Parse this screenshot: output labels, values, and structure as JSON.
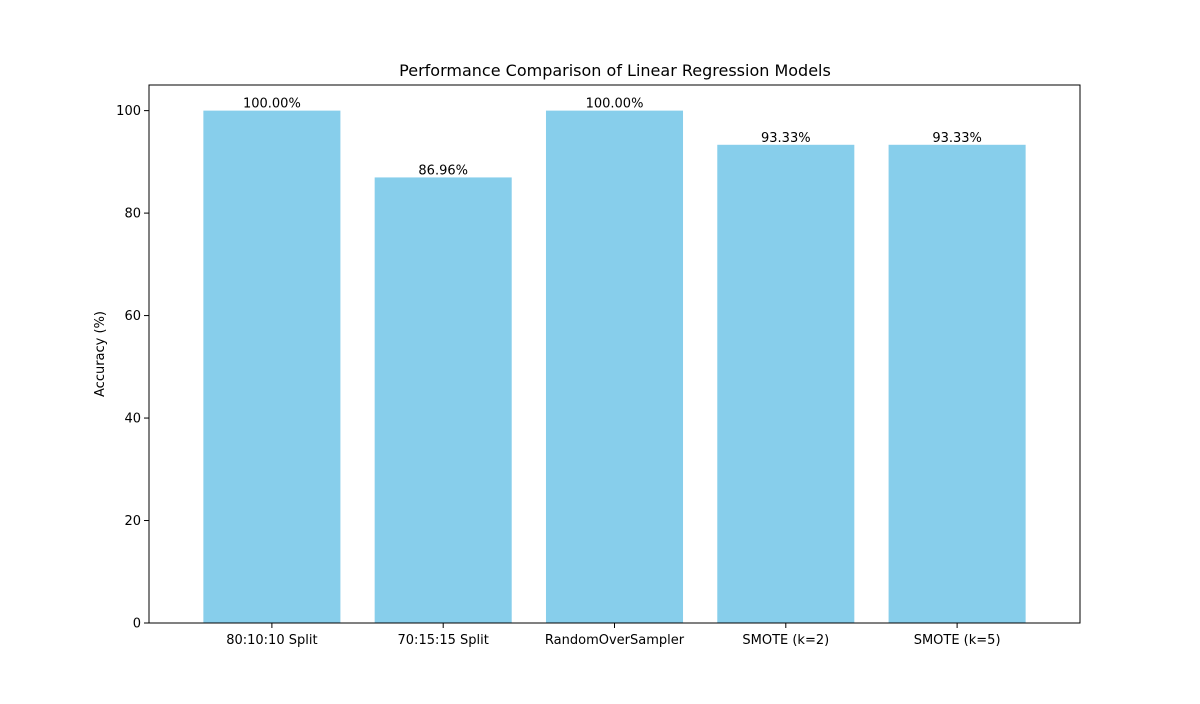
{
  "chart_data": {
    "type": "bar",
    "title": "Performance Comparison of Linear Regression Models",
    "xlabel": "",
    "ylabel": "Accuracy (%)",
    "categories": [
      "80:10:10 Split",
      "70:15:15 Split",
      "RandomOverSampler",
      "SMOTE (k=2)",
      "SMOTE (k=5)"
    ],
    "values": [
      100.0,
      86.96,
      100.0,
      93.33,
      93.33
    ],
    "data_labels": [
      "100.00%",
      "86.96%",
      "100.00%",
      "93.33%",
      "93.33%"
    ],
    "ylim": [
      0,
      105
    ],
    "yticks": [
      0,
      20,
      40,
      60,
      80,
      100
    ],
    "ytick_labels": [
      "0",
      "20",
      "40",
      "60",
      "80",
      "100"
    ],
    "grid": false,
    "legend": "none",
    "bar_color": "#87CEEB"
  }
}
